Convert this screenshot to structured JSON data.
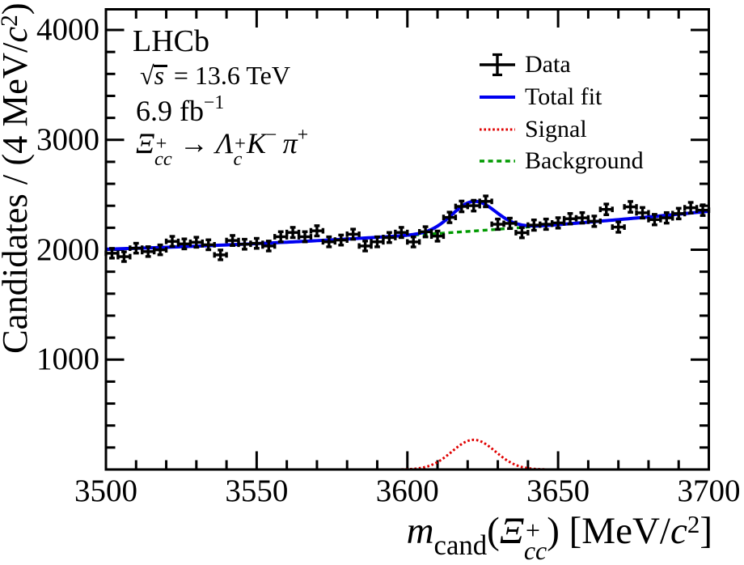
{
  "figure": {
    "background": "#ffffff",
    "axis_color": "#000000",
    "text_color": "#000000"
  },
  "chart_data": {
    "type": "bar",
    "subtype": "histogram-with-fit",
    "title": "",
    "xlabel_plain": "m_cand(Xi_cc+) [MeV/c2]",
    "ylabel_plain": "Candidates / (4 MeV/c2)",
    "xlabel_segments": [
      {
        "t": "m",
        "i": true
      },
      {
        "t": "cand",
        "v": "sub"
      },
      {
        "t": "("
      },
      {
        "t": "Ξ",
        "i": true
      },
      {
        "stack": [
          "+",
          "cc"
        ],
        "i": true
      },
      {
        "t": ") [MeV/"
      },
      {
        "t": "c",
        "i": true
      },
      {
        "t": "2",
        "v": "sup"
      },
      {
        "t": "]"
      }
    ],
    "ylabel_segments": [
      {
        "t": "Candidates / (4 MeV/"
      },
      {
        "t": "c",
        "i": true
      },
      {
        "t": "2",
        "v": "sup"
      },
      {
        "t": ")"
      }
    ],
    "xlim": [
      3500,
      3700
    ],
    "ylim": [
      0,
      4188
    ],
    "x_major_ticks": [
      3500,
      3550,
      3600,
      3650,
      3700
    ],
    "x_tick_labels": [
      "3500",
      "3550",
      "3600",
      "3650",
      "3700"
    ],
    "x_minor_step": 10,
    "y_major_ticks": [
      1000,
      2000,
      3000,
      4000
    ],
    "y_tick_labels": [
      "1000",
      "2000",
      "3000",
      "4000"
    ],
    "y_minor_step": 200,
    "grid": false,
    "bin_width": 4,
    "bin_centers": [
      3502,
      3506,
      3510,
      3514,
      3518,
      3522,
      3526,
      3530,
      3534,
      3538,
      3542,
      3546,
      3550,
      3554,
      3558,
      3562,
      3566,
      3570,
      3574,
      3578,
      3582,
      3586,
      3590,
      3594,
      3598,
      3602,
      3606,
      3610,
      3614,
      3618,
      3622,
      3626,
      3630,
      3634,
      3638,
      3642,
      3646,
      3650,
      3654,
      3658,
      3662,
      3666,
      3670,
      3674,
      3678,
      3682,
      3686,
      3690,
      3694,
      3698
    ],
    "values": [
      1968,
      1937,
      2014,
      1983,
      1999,
      2076,
      2053,
      2068,
      2045,
      1953,
      2084,
      2050,
      2058,
      2034,
      2118,
      2157,
      2118,
      2172,
      2072,
      2088,
      2141,
      2034,
      2072,
      2111,
      2157,
      2071,
      2163,
      2124,
      2294,
      2394,
      2401,
      2440,
      2232,
      2240,
      2155,
      2224,
      2232,
      2244,
      2282,
      2290,
      2259,
      2367,
      2206,
      2390,
      2336,
      2274,
      2290,
      2329,
      2382,
      2360
    ],
    "fit": {
      "background": {
        "type": "quadratic",
        "p0": 2005,
        "p1": 155,
        "p2": 190,
        "note": "value = p0 + p1*t + p2*t^2, t=(m-3500)/200"
      },
      "signal": {
        "type": "gaussian",
        "mean": 3622,
        "sigma": 7.2,
        "amplitude": 270
      }
    },
    "colors": {
      "data": "#000000",
      "total_fit": "#0000f0",
      "signal": "#e00000",
      "background": "#009a00"
    },
    "legend_position": "top-right",
    "legend": [
      {
        "label": "Data",
        "style": "marker"
      },
      {
        "label": "Total fit",
        "style": "solid"
      },
      {
        "label": "Signal",
        "style": "dotted"
      },
      {
        "label": "Background",
        "style": "dashed"
      }
    ]
  },
  "annotations": {
    "line1_segments": [
      {
        "t": "LHCb"
      }
    ],
    "line2_segments": [
      {
        "t": "√"
      },
      {
        "t": "s",
        "i": true,
        "o": true
      },
      {
        "t": " = 13.6 TeV"
      }
    ],
    "line3_segments": [
      {
        "t": "6.9 fb"
      },
      {
        "t": "−1",
        "v": "sup"
      }
    ],
    "line4_segments": [
      {
        "t": "Ξ",
        "i": true
      },
      {
        "stack": [
          "+",
          "cc"
        ],
        "i": true
      },
      {
        "t": " → ",
        "i": false
      },
      {
        "t": "Λ",
        "i": true
      },
      {
        "stack": [
          "+",
          "c"
        ],
        "i": true
      },
      {
        "t": "K",
        "i": true
      },
      {
        "t": "−",
        "v": "sup"
      },
      {
        "t": " "
      },
      {
        "t": "π",
        "i": true
      },
      {
        "t": "+",
        "v": "sup"
      }
    ]
  }
}
